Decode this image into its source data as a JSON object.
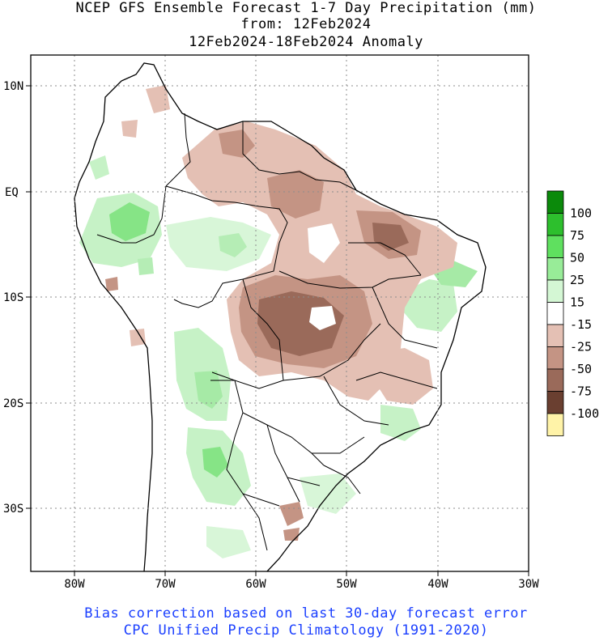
{
  "title": {
    "line1": "NCEP GFS Ensemble Forecast 1-7 Day Precipitation (mm)",
    "line2": "from: 12Feb2024",
    "line3": "12Feb2024-18Feb2024 Anomaly"
  },
  "footer": {
    "line1": "Bias correction based on last 30-day forecast error",
    "line2": "CPC Unified Precip Climatology (1991-2020)"
  },
  "axes": {
    "lat_labels": [
      "10N",
      "EQ",
      "10S",
      "20S",
      "30S"
    ],
    "lon_labels": [
      "80W",
      "70W",
      "60W",
      "50W",
      "40W",
      "30W"
    ]
  },
  "colorbar": {
    "labels": [
      "100",
      "75",
      "50",
      "25",
      "15",
      "-15",
      "-25",
      "-50",
      "-75",
      "-100"
    ],
    "colors": [
      "#0b8a0b",
      "#2dbf2d",
      "#5fe05f",
      "#98ec98",
      "#d4f7d4",
      "#ffffff",
      "#e4c0b4",
      "#c49484",
      "#9a6a5a",
      "#6a3f30",
      "#fff3a8"
    ]
  },
  "region": "South America",
  "colors": {
    "wet_light": "#c6f2c6",
    "wet_mid": "#86e486",
    "dry_light": "#e4c0b4",
    "dry_mid": "#c49484",
    "dry_dark": "#9a6a5a",
    "footer_text": "#1a3fff"
  }
}
